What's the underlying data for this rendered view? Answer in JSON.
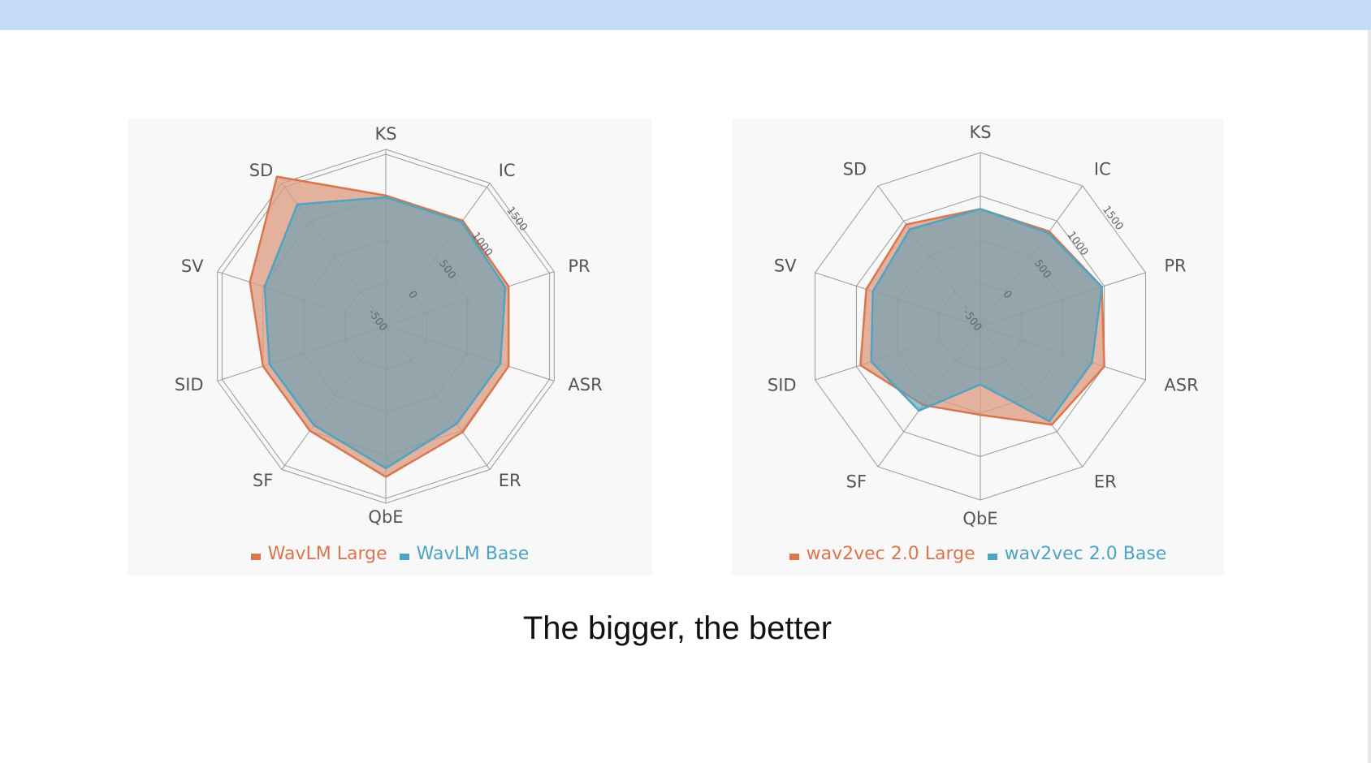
{
  "caption": "The bigger, the better",
  "colors": {
    "large": "#d9764f",
    "base": "#4fa3c4",
    "overlap_fill": "#8fa7ae",
    "panel_bg": "#f8f8f8",
    "header_bar": "#c6dbf8"
  },
  "chart_data": [
    {
      "type": "radar",
      "axes": [
        "KS",
        "IC",
        "PR",
        "ASR",
        "ER",
        "QbE",
        "SF",
        "SID",
        "SV",
        "SD"
      ],
      "rlim": [
        -500,
        1500
      ],
      "ticks": [
        "-500",
        "0",
        "500",
        "1000",
        "1500"
      ],
      "legend_position": "bottom",
      "series": [
        {
          "name": "WavLM Large",
          "values": [
            1020,
            1020,
            1000,
            1000,
            1020,
            1250,
            1000,
            1000,
            1160,
            1650
          ]
        },
        {
          "name": "WavLM Base",
          "values": [
            1000,
            1000,
            960,
            900,
            900,
            1150,
            920,
            920,
            980,
            1250
          ]
        }
      ]
    },
    {
      "type": "radar",
      "axes": [
        "KS",
        "IC",
        "PR",
        "ASR",
        "ER",
        "QbE",
        "SF",
        "SID",
        "SV",
        "SD"
      ],
      "rlim": [
        -500,
        1500
      ],
      "ticks": [
        "-500",
        "0",
        "500",
        "1000",
        "1500"
      ],
      "legend_position": "bottom",
      "series": [
        {
          "name": "wav2vec 2.0 Large",
          "values": [
            850,
            850,
            970,
            1000,
            900,
            520,
            620,
            950,
            880,
            950
          ]
        },
        {
          "name": "wav2vec 2.0 Base",
          "values": [
            850,
            830,
            970,
            850,
            850,
            170,
            700,
            820,
            800,
            880
          ]
        }
      ]
    }
  ]
}
